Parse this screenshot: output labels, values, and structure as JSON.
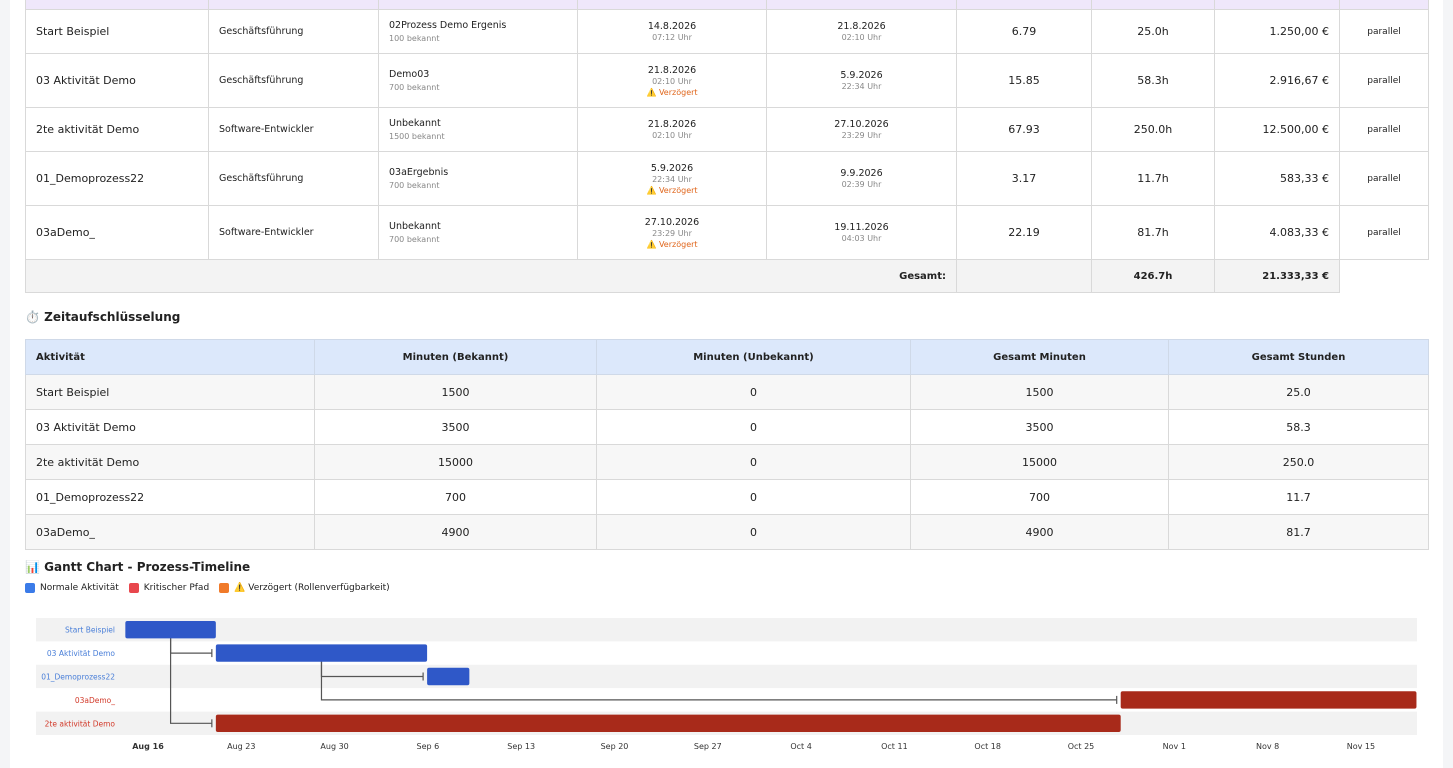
{
  "activity_table": {
    "rows": [
      {
        "name": "Start Beispiel",
        "role": "Geschäftsführung",
        "output": "02Prozess Demo Ergenis",
        "output_sub": "100 bekannt",
        "start_date": "14.8.2026",
        "start_time": "07:12 Uhr",
        "start_warn": "",
        "end_date": "21.8.2026",
        "end_time": "02:10 Uhr",
        "value": "6.79",
        "hours": "25.0h",
        "cost": "1.250,00 €",
        "mode": "parallel"
      },
      {
        "name": "03 Aktivität Demo",
        "role": "Geschäftsführung",
        "output": "Demo03",
        "output_sub": "700 bekannt",
        "start_date": "21.8.2026",
        "start_time": "02:10 Uhr",
        "start_warn": "⚠️ Verzögert",
        "end_date": "5.9.2026",
        "end_time": "22:34 Uhr",
        "value": "15.85",
        "hours": "58.3h",
        "cost": "2.916,67 €",
        "mode": "parallel"
      },
      {
        "name": "2te aktivität Demo",
        "role": "Software-Entwickler",
        "output": "Unbekannt",
        "output_sub": "1500 bekannt",
        "start_date": "21.8.2026",
        "start_time": "02:10 Uhr",
        "start_warn": "",
        "end_date": "27.10.2026",
        "end_time": "23:29 Uhr",
        "value": "67.93",
        "hours": "250.0h",
        "cost": "12.500,00 €",
        "mode": "parallel"
      },
      {
        "name": "01_Demoprozess22",
        "role": "Geschäftsführung",
        "output": "03aErgebnis",
        "output_sub": "700 bekannt",
        "start_date": "5.9.2026",
        "start_time": "22:34 Uhr",
        "start_warn": "⚠️ Verzögert",
        "end_date": "9.9.2026",
        "end_time": "02:39 Uhr",
        "value": "3.17",
        "hours": "11.7h",
        "cost": "583,33 €",
        "mode": "parallel"
      },
      {
        "name": "03aDemo_",
        "role": "Software-Entwickler",
        "output": "Unbekannt",
        "output_sub": "700 bekannt",
        "start_date": "27.10.2026",
        "start_time": "23:29 Uhr",
        "start_warn": "⚠️ Verzögert",
        "end_date": "19.11.2026",
        "end_time": "04:03 Uhr",
        "value": "22.19",
        "hours": "81.7h",
        "cost": "4.083,33 €",
        "mode": "parallel"
      }
    ],
    "total_label": "Gesamt:",
    "total_hours": "426.7h",
    "total_cost": "21.333,33 €"
  },
  "breakdown": {
    "title": "⏱️ Zeitaufschlüsselung",
    "headers": [
      "Aktivität",
      "Minuten (Bekannt)",
      "Minuten (Unbekannt)",
      "Gesamt Minuten",
      "Gesamt Stunden"
    ],
    "rows": [
      [
        "Start Beispiel",
        "1500",
        "0",
        "1500",
        "25.0"
      ],
      [
        "03 Aktivität Demo",
        "3500",
        "0",
        "3500",
        "58.3"
      ],
      [
        "2te aktivität Demo",
        "15000",
        "0",
        "15000",
        "250.0"
      ],
      [
        "01_Demoprozess22",
        "700",
        "0",
        "700",
        "11.7"
      ],
      [
        "03aDemo_",
        "4900",
        "0",
        "4900",
        "81.7"
      ]
    ]
  },
  "gantt": {
    "title": "📊 Gantt Chart - Prozess-Timeline",
    "legend": [
      {
        "label": "Normale Aktivität",
        "color": "#3b7be8"
      },
      {
        "label": "Kritischer Pfad",
        "color": "#e8474d"
      },
      {
        "label": "⚠️ Verzögert (Rollenverfügbarkeit)",
        "color": "#f07a2a"
      }
    ],
    "colors": {
      "normal": "#2f58c8",
      "critical": "#a82a1a",
      "normal_label": "#4a7fd8",
      "critical_label": "#d23a2a"
    },
    "ticks": [
      "Aug 16",
      "Aug 23",
      "Aug 30",
      "Sep 6",
      "Sep 13",
      "Sep 20",
      "Sep 27",
      "Oct 4",
      "Oct 11",
      "Oct 18",
      "Oct 25",
      "Nov 1",
      "Nov 8",
      "Nov 15"
    ],
    "tick_start": "2026-08-16",
    "chart_data": {
      "type": "gantt",
      "rows": [
        {
          "name": "Start Beispiel",
          "start": "2026-08-14T07:12",
          "end": "2026-08-21T02:10",
          "kind": "normal"
        },
        {
          "name": "03 Aktivität Demo",
          "start": "2026-08-21T02:10",
          "end": "2026-09-05T22:34",
          "kind": "normal"
        },
        {
          "name": "01_Demoprozess22",
          "start": "2026-09-05T22:34",
          "end": "2026-09-09T02:39",
          "kind": "normal"
        },
        {
          "name": "03aDemo_",
          "start": "2026-10-27T23:29",
          "end": "2026-11-19T04:03",
          "kind": "critical"
        },
        {
          "name": "2te aktivität Demo",
          "start": "2026-08-21T02:10",
          "end": "2026-10-27T23:29",
          "kind": "critical"
        }
      ],
      "links": [
        {
          "from": "Start Beispiel",
          "to": "03 Aktivität Demo"
        },
        {
          "from": "Start Beispiel",
          "to": "2te aktivität Demo"
        },
        {
          "from": "03 Aktivität Demo",
          "to": "01_Demoprozess22"
        },
        {
          "from": "03 Aktivität Demo",
          "to": "03aDemo_"
        }
      ]
    }
  }
}
